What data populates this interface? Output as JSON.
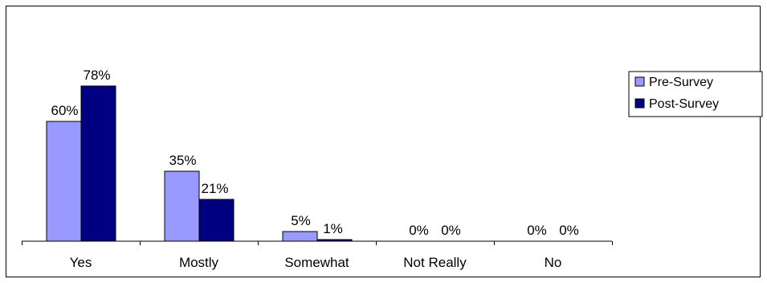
{
  "chart_data": {
    "type": "bar",
    "categories": [
      "Yes",
      "Mostly",
      "Somewhat",
      "Not Really",
      "No"
    ],
    "series": [
      {
        "name": "Pre-Survey",
        "values": [
          60,
          35,
          5,
          0,
          0
        ],
        "labels": [
          "60%",
          "35%",
          "5%",
          "0%",
          "0%"
        ],
        "color": "#9999ff"
      },
      {
        "name": "Post-Survey",
        "values": [
          78,
          21,
          1,
          0,
          0
        ],
        "labels": [
          "78%",
          "21%",
          "1%",
          "0%",
          "0%"
        ],
        "color": "#000080"
      }
    ],
    "ylim": [
      0,
      100
    ],
    "grid": false,
    "legend_position": "right",
    "title": "",
    "xlabel": "",
    "ylabel": ""
  }
}
